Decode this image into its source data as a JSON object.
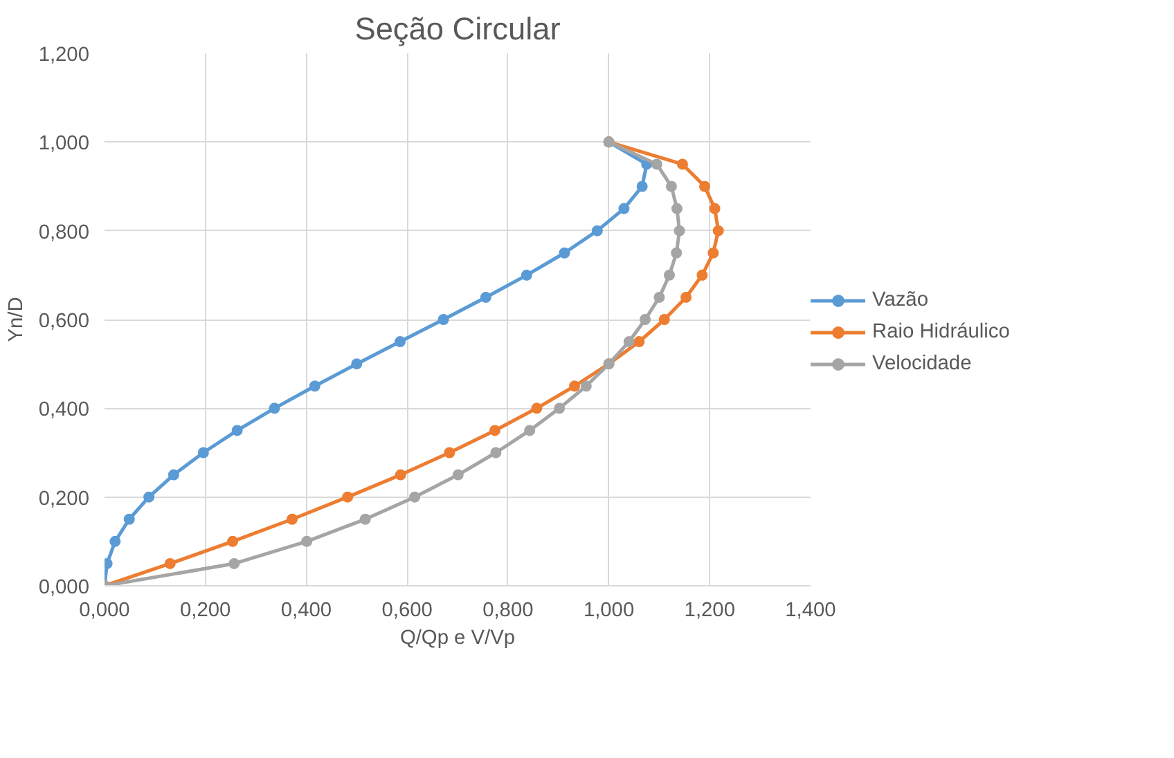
{
  "chart_data": {
    "type": "line",
    "title": "Seção Circular",
    "xlabel": "Q/Qp e V/Vp",
    "ylabel": "Yn/D",
    "marker": "circle",
    "line_style": "solid",
    "grid": true,
    "legend": "right",
    "xlim": [
      0,
      1.4
    ],
    "ylim": [
      0,
      1.2
    ],
    "xticks": [
      {
        "value": 0,
        "label": "0,000"
      },
      {
        "value": 0.2,
        "label": "0,200"
      },
      {
        "value": 0.4,
        "label": "0,400"
      },
      {
        "value": 0.6,
        "label": "0,600"
      },
      {
        "value": 0.8,
        "label": "0,800"
      },
      {
        "value": 1.0,
        "label": "1,000"
      },
      {
        "value": 1.2,
        "label": "1,200"
      },
      {
        "value": 1.4,
        "label": "1,400"
      }
    ],
    "yticks": [
      {
        "value": 0,
        "label": "0,000"
      },
      {
        "value": 0.2,
        "label": "0,200"
      },
      {
        "value": 0.4,
        "label": "0,400"
      },
      {
        "value": 0.6,
        "label": "0,600"
      },
      {
        "value": 0.8,
        "label": "0,800"
      },
      {
        "value": 1.0,
        "label": "1,000"
      },
      {
        "value": 1.2,
        "label": "1,200"
      }
    ],
    "series": [
      {
        "name": "Vazão",
        "color": "#5b9bd5",
        "x": [
          0,
          0.005,
          0.021,
          0.049,
          0.088,
          0.137,
          0.196,
          0.263,
          0.337,
          0.417,
          0.5,
          0.586,
          0.672,
          0.756,
          0.837,
          0.912,
          0.977,
          1.03,
          1.066,
          1.075,
          1.0
        ],
        "values": [
          0,
          0.05,
          0.1,
          0.15,
          0.2,
          0.25,
          0.3,
          0.35,
          0.4,
          0.45,
          0.5,
          0.55,
          0.6,
          0.65,
          0.7,
          0.75,
          0.8,
          0.85,
          0.9,
          0.95,
          1.0
        ]
      },
      {
        "name": "Raio Hidráulico",
        "color": "#ed7d31",
        "x": [
          0,
          0.13,
          0.254,
          0.372,
          0.482,
          0.587,
          0.684,
          0.774,
          0.857,
          0.932,
          1.0,
          1.06,
          1.11,
          1.153,
          1.185,
          1.207,
          1.217,
          1.21,
          1.19,
          1.146,
          1.0
        ],
        "values": [
          0,
          0.05,
          0.1,
          0.15,
          0.2,
          0.25,
          0.3,
          0.35,
          0.4,
          0.45,
          0.5,
          0.55,
          0.6,
          0.65,
          0.7,
          0.75,
          0.8,
          0.85,
          0.9,
          0.95,
          1.0
        ]
      },
      {
        "name": "Velocidade",
        "color": "#a5a5a5",
        "x": [
          0,
          0.257,
          0.401,
          0.517,
          0.615,
          0.701,
          0.776,
          0.843,
          0.902,
          0.955,
          1.0,
          1.04,
          1.072,
          1.1,
          1.12,
          1.134,
          1.14,
          1.135,
          1.124,
          1.095,
          1.0
        ],
        "values": [
          0,
          0.05,
          0.1,
          0.15,
          0.2,
          0.25,
          0.3,
          0.35,
          0.4,
          0.45,
          0.5,
          0.55,
          0.6,
          0.65,
          0.7,
          0.75,
          0.8,
          0.85,
          0.9,
          0.95,
          1.0
        ]
      }
    ]
  }
}
